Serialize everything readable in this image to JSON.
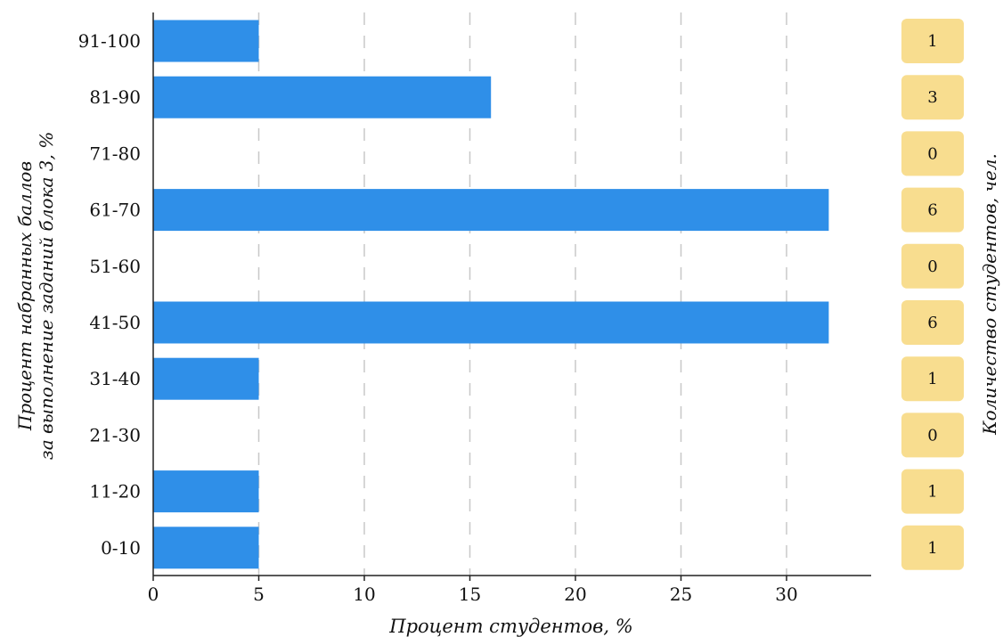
{
  "chart_data": {
    "type": "bar",
    "orientation": "horizontal",
    "categories": [
      "91-100",
      "81-90",
      "71-80",
      "61-70",
      "51-60",
      "41-50",
      "31-40",
      "21-30",
      "11-20",
      "0-10"
    ],
    "values": [
      5,
      16,
      0,
      32,
      0,
      32,
      5,
      0,
      5,
      5
    ],
    "counts": [
      "1",
      "3",
      "0",
      "6",
      "0",
      "6",
      "1",
      "0",
      "1",
      "1"
    ],
    "xlabel": "Процент студентов, %",
    "ylabel_line1": "Процент набранных баллов",
    "ylabel_line2": "за выполнение заданий блока 3, %",
    "right_label": "Количество студентов, чел.",
    "xlim": [
      0,
      34
    ],
    "xticks": [
      "0",
      "5",
      "10",
      "15",
      "20",
      "25",
      "30"
    ],
    "grid": "vertical dashed",
    "colors": {
      "bar": "#2f8fe8",
      "badge": "#f8dd8f",
      "grid": "#c8c8c8",
      "axis": "#222222",
      "text": "#111111"
    }
  }
}
